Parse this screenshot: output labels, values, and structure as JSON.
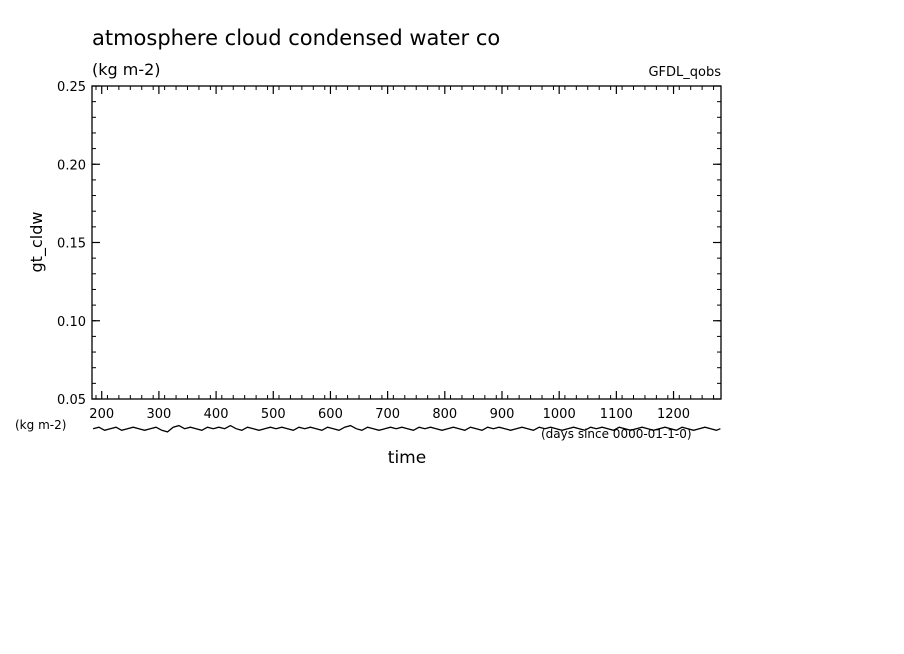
{
  "chart_data": {
    "type": "line",
    "title": "atmosphere cloud condensed water co",
    "subtitle": "(kg m-2)",
    "source_label": "GFDL_qobs",
    "xlabel": "time",
    "ylabel": "gt_cldw",
    "y_unit_label": "(kg m-2)",
    "x_unit_label": "(days since 0000-01-1-0)",
    "xlim": [
      183,
      1283
    ],
    "ylim": [
      0.05,
      0.25
    ],
    "x_ticks": [
      "200",
      "300",
      "400",
      "500",
      "600",
      "700",
      "800",
      "900",
      "1000",
      "1100",
      "1200"
    ],
    "y_ticks": [
      "0.25",
      "0.20",
      "0.15",
      "0.10",
      "0.05"
    ],
    "line_color": "#000000",
    "series": [
      {
        "x": [
          185,
          195,
          205,
          215,
          225,
          235,
          245,
          255,
          265,
          275,
          285,
          295,
          305,
          315,
          325,
          335,
          345,
          355,
          365,
          375,
          385,
          395,
          405,
          415,
          425,
          435,
          445,
          455,
          465,
          475,
          485,
          495,
          505,
          515,
          525,
          535,
          545,
          555,
          565,
          575,
          585,
          595,
          605,
          615,
          625,
          635,
          645,
          655,
          665,
          675,
          685,
          695,
          705,
          715,
          725,
          735,
          745,
          755,
          765,
          775,
          785,
          795,
          805,
          815,
          825,
          835,
          845,
          855,
          865,
          875,
          885,
          895,
          905,
          915,
          925,
          935,
          945,
          955,
          965,
          975,
          985,
          995,
          1005,
          1015,
          1025,
          1035,
          1045,
          1055,
          1065,
          1075,
          1085,
          1095,
          1105,
          1115,
          1125,
          1135,
          1145,
          1155,
          1165,
          1175,
          1185,
          1195,
          1205,
          1215,
          1225,
          1235,
          1245,
          1255,
          1265,
          1275,
          1282
        ],
        "y": [
          0.031,
          0.032,
          0.03,
          0.031,
          0.032,
          0.03,
          0.031,
          0.032,
          0.031,
          0.03,
          0.031,
          0.032,
          0.03,
          0.029,
          0.032,
          0.033,
          0.031,
          0.032,
          0.031,
          0.03,
          0.032,
          0.031,
          0.032,
          0.031,
          0.033,
          0.031,
          0.03,
          0.032,
          0.031,
          0.03,
          0.031,
          0.032,
          0.031,
          0.032,
          0.031,
          0.03,
          0.032,
          0.031,
          0.032,
          0.031,
          0.03,
          0.032,
          0.031,
          0.03,
          0.032,
          0.033,
          0.031,
          0.03,
          0.032,
          0.031,
          0.03,
          0.031,
          0.032,
          0.031,
          0.032,
          0.031,
          0.03,
          0.032,
          0.031,
          0.032,
          0.031,
          0.03,
          0.031,
          0.032,
          0.031,
          0.03,
          0.032,
          0.031,
          0.03,
          0.032,
          0.031,
          0.032,
          0.031,
          0.03,
          0.031,
          0.032,
          0.031,
          0.03,
          0.032,
          0.031,
          0.032,
          0.031,
          0.03,
          0.031,
          0.032,
          0.031,
          0.03,
          0.032,
          0.031,
          0.032,
          0.031,
          0.03,
          0.032,
          0.031,
          0.03,
          0.031,
          0.032,
          0.031,
          0.03,
          0.031,
          0.032,
          0.031,
          0.03,
          0.032,
          0.031,
          0.03,
          0.031,
          0.032,
          0.031,
          0.03,
          0.031
        ]
      }
    ]
  }
}
